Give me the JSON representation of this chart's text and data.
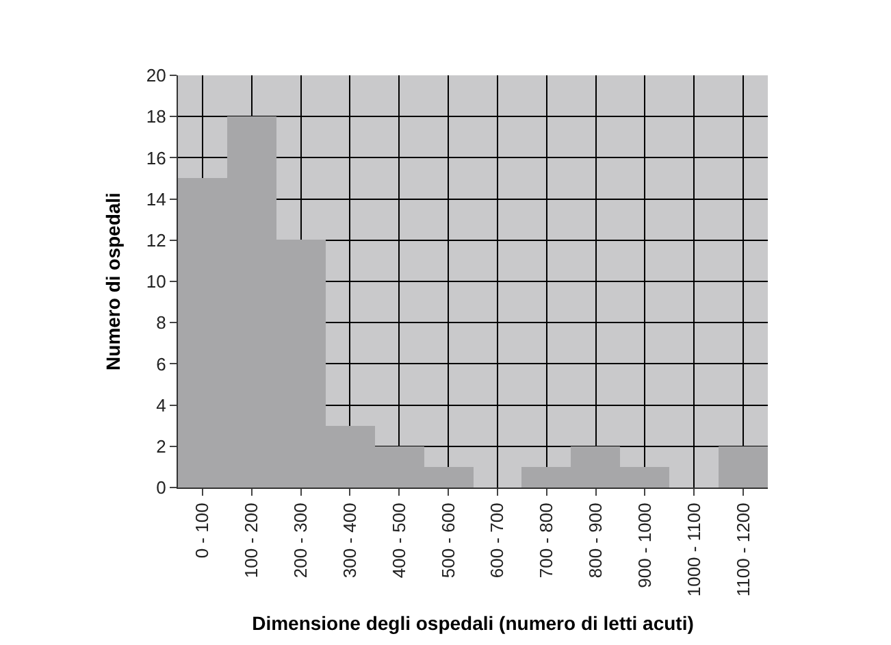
{
  "chart_data": {
    "type": "bar",
    "xlabel": "Dimensione degli ospedali (numero di letti acuti)",
    "ylabel": "Numero di ospedali",
    "categories": [
      "0 - 100",
      "100 - 200",
      "200 - 300",
      "300 - 400",
      "400 - 500",
      "500 - 600",
      "600 - 700",
      "700 - 800",
      "800 - 900",
      "900 - 1000",
      "1000 - 1100",
      "1100 - 1200"
    ],
    "values": [
      15,
      18,
      12,
      3,
      2,
      1,
      0,
      1,
      2,
      1,
      0,
      2
    ],
    "color": "#a7a7a9",
    "ylim": [
      0,
      20
    ],
    "yticks": [
      0,
      2,
      4,
      6,
      8,
      10,
      12,
      14,
      16,
      18,
      20
    ],
    "grid": true
  }
}
